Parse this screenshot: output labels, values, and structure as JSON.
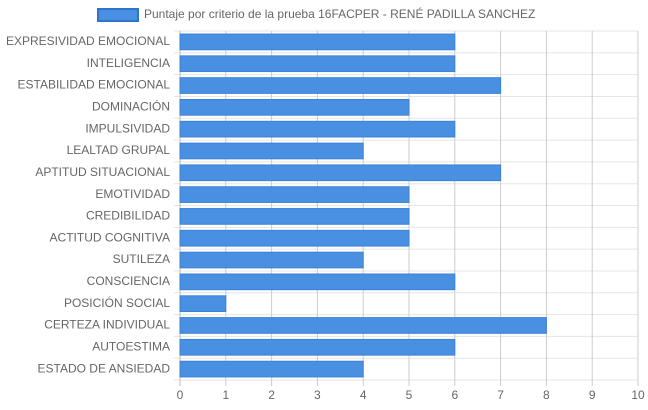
{
  "chart_data": {
    "type": "bar",
    "orientation": "horizontal",
    "categories": [
      "EXPRESIVIDAD EMOCIONAL",
      "INTELIGENCIA",
      "ESTABILIDAD EMOCIONAL",
      "DOMINACIÓN",
      "IMPULSIVIDAD",
      "LEALTAD GRUPAL",
      "APTITUD SITUACIONAL",
      "EMOTIVIDAD",
      "CREDIBILIDAD",
      "ACTITUD COGNITIVA",
      "SUTILEZA",
      "CONSCIENCIA",
      "POSICIÓN SOCIAL",
      "CERTEZA INDIVIDUAL",
      "AUTOESTIMA",
      "ESTADO DE ANSIEDAD"
    ],
    "series": [
      {
        "name": "Puntaje por criterio de la prueba 16FACPER - RENÉ PADILLA SANCHEZ",
        "color": "#4a90e2",
        "values": [
          6,
          6,
          7,
          5,
          6,
          4,
          7,
          5,
          5,
          5,
          4,
          6,
          1,
          8,
          6,
          4
        ]
      }
    ],
    "xlim": [
      0,
      10
    ],
    "xticks": [
      0,
      1,
      2,
      3,
      4,
      5,
      6,
      7,
      8,
      9,
      10
    ],
    "grid": true,
    "legend": "top"
  }
}
